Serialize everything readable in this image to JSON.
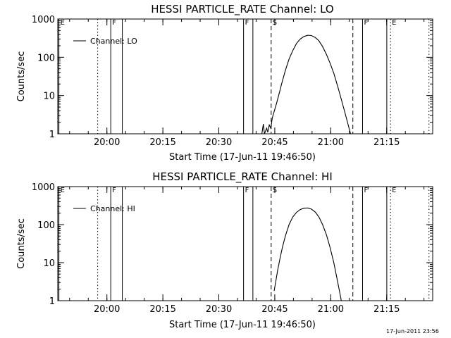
{
  "stamp": "17-Jun-2011 23:56",
  "chart_data": [
    {
      "type": "line",
      "title": "HESSI PARTICLE_RATE Channel: LO",
      "xlabel": "Start Time (17-Jun-11 19:46:50)",
      "ylabel": "Counts/sec",
      "x_unit": "minutes since 19:46:50",
      "xlim": [
        0,
        100.5
      ],
      "ylim": [
        1,
        1000
      ],
      "yscale": "log",
      "grid": false,
      "xticks": [
        {
          "value": 13.17,
          "label": "20:00"
        },
        {
          "value": 28.17,
          "label": "20:15"
        },
        {
          "value": 43.17,
          "label": "20:30"
        },
        {
          "value": 58.17,
          "label": "20:45"
        },
        {
          "value": 73.17,
          "label": "21:00"
        },
        {
          "value": 88.17,
          "label": "21:15"
        }
      ],
      "yticks": [
        {
          "value": 1,
          "label": "1"
        },
        {
          "value": 10,
          "label": "10"
        },
        {
          "value": 100,
          "label": "100"
        },
        {
          "value": 1000,
          "label": "1000"
        }
      ],
      "legend": {
        "label": "Channel: LO",
        "placement": "top-left"
      },
      "markers": [
        {
          "x": 0.3,
          "style": "solid",
          "label": "E"
        },
        {
          "x": 10.7,
          "style": "dotted",
          "label": ""
        },
        {
          "x": 14.2,
          "style": "solid",
          "label": "F"
        },
        {
          "x": 17.3,
          "style": "solid",
          "label": ""
        },
        {
          "x": 49.8,
          "style": "solid",
          "label": "F"
        },
        {
          "x": 52.3,
          "style": "solid",
          "label": ""
        },
        {
          "x": 57.2,
          "style": "dashed",
          "label": "S"
        },
        {
          "x": 79.1,
          "style": "dashed",
          "label": ""
        },
        {
          "x": 81.7,
          "style": "solid",
          "label": "F"
        },
        {
          "x": 88.2,
          "style": "solid",
          "label": ""
        },
        {
          "x": 89.2,
          "style": "dotted",
          "label": "E"
        },
        {
          "x": 99.5,
          "style": "dotted",
          "label": ""
        }
      ],
      "series": [
        {
          "name": "Channel: LO",
          "points": [
            [
              54.7,
              1.0
            ],
            [
              55.1,
              1.8
            ],
            [
              55.4,
              1.0
            ],
            [
              56.0,
              1.4
            ],
            [
              56.3,
              1.1
            ],
            [
              56.7,
              1.7
            ],
            [
              57.1,
              1.4
            ],
            [
              57.5,
              2.6
            ],
            [
              58.0,
              3.8
            ],
            [
              58.6,
              6
            ],
            [
              59.2,
              10
            ],
            [
              60.0,
              20
            ],
            [
              61.0,
              45
            ],
            [
              62.0,
              90
            ],
            [
              63.0,
              150
            ],
            [
              64.0,
              230
            ],
            [
              65.0,
              300
            ],
            [
              66.0,
              350
            ],
            [
              67.0,
              375
            ],
            [
              68.0,
              370
            ],
            [
              69.0,
              330
            ],
            [
              70.0,
              270
            ],
            [
              71.0,
              190
            ],
            [
              72.0,
              120
            ],
            [
              73.0,
              70
            ],
            [
              74.0,
              38
            ],
            [
              75.0,
              18
            ],
            [
              76.0,
              8
            ],
            [
              77.0,
              3.5
            ],
            [
              78.0,
              1.5
            ],
            [
              78.5,
              1.0
            ]
          ]
        }
      ]
    },
    {
      "type": "line",
      "title": "HESSI PARTICLE_RATE Channel: HI",
      "xlabel": "Start Time (17-Jun-11 19:46:50)",
      "ylabel": "Counts/sec",
      "x_unit": "minutes since 19:46:50",
      "xlim": [
        0,
        100.5
      ],
      "ylim": [
        1,
        1000
      ],
      "yscale": "log",
      "grid": false,
      "xticks": [
        {
          "value": 13.17,
          "label": "20:00"
        },
        {
          "value": 28.17,
          "label": "20:15"
        },
        {
          "value": 43.17,
          "label": "20:30"
        },
        {
          "value": 58.17,
          "label": "20:45"
        },
        {
          "value": 73.17,
          "label": "21:00"
        },
        {
          "value": 88.17,
          "label": "21:15"
        }
      ],
      "yticks": [
        {
          "value": 1,
          "label": "1"
        },
        {
          "value": 10,
          "label": "10"
        },
        {
          "value": 100,
          "label": "100"
        },
        {
          "value": 1000,
          "label": "1000"
        }
      ],
      "legend": {
        "label": "Channel: HI",
        "placement": "top-left"
      },
      "markers": [
        {
          "x": 0.3,
          "style": "solid",
          "label": "E"
        },
        {
          "x": 10.7,
          "style": "dotted",
          "label": ""
        },
        {
          "x": 14.2,
          "style": "solid",
          "label": "F"
        },
        {
          "x": 17.3,
          "style": "solid",
          "label": ""
        },
        {
          "x": 49.8,
          "style": "solid",
          "label": "F"
        },
        {
          "x": 52.3,
          "style": "solid",
          "label": ""
        },
        {
          "x": 57.2,
          "style": "dashed",
          "label": "S"
        },
        {
          "x": 79.1,
          "style": "dashed",
          "label": ""
        },
        {
          "x": 81.7,
          "style": "solid",
          "label": "F"
        },
        {
          "x": 88.2,
          "style": "solid",
          "label": ""
        },
        {
          "x": 89.2,
          "style": "dotted",
          "label": "E"
        },
        {
          "x": 99.5,
          "style": "dotted",
          "label": ""
        }
      ],
      "series": [
        {
          "name": "Channel: HI",
          "points": [
            [
              58.0,
              1.8
            ],
            [
              58.4,
              3
            ],
            [
              58.9,
              6
            ],
            [
              59.5,
              12
            ],
            [
              60.2,
              25
            ],
            [
              61.0,
              50
            ],
            [
              62.0,
              100
            ],
            [
              63.0,
              160
            ],
            [
              64.0,
              210
            ],
            [
              65.0,
              250
            ],
            [
              66.0,
              270
            ],
            [
              67.0,
              275
            ],
            [
              68.0,
              255
            ],
            [
              69.0,
              215
            ],
            [
              70.0,
              160
            ],
            [
              71.0,
              100
            ],
            [
              72.0,
              55
            ],
            [
              73.0,
              25
            ],
            [
              74.0,
              10
            ],
            [
              74.8,
              4
            ],
            [
              75.5,
              1.8
            ],
            [
              76.0,
              1.0
            ]
          ]
        }
      ]
    }
  ]
}
